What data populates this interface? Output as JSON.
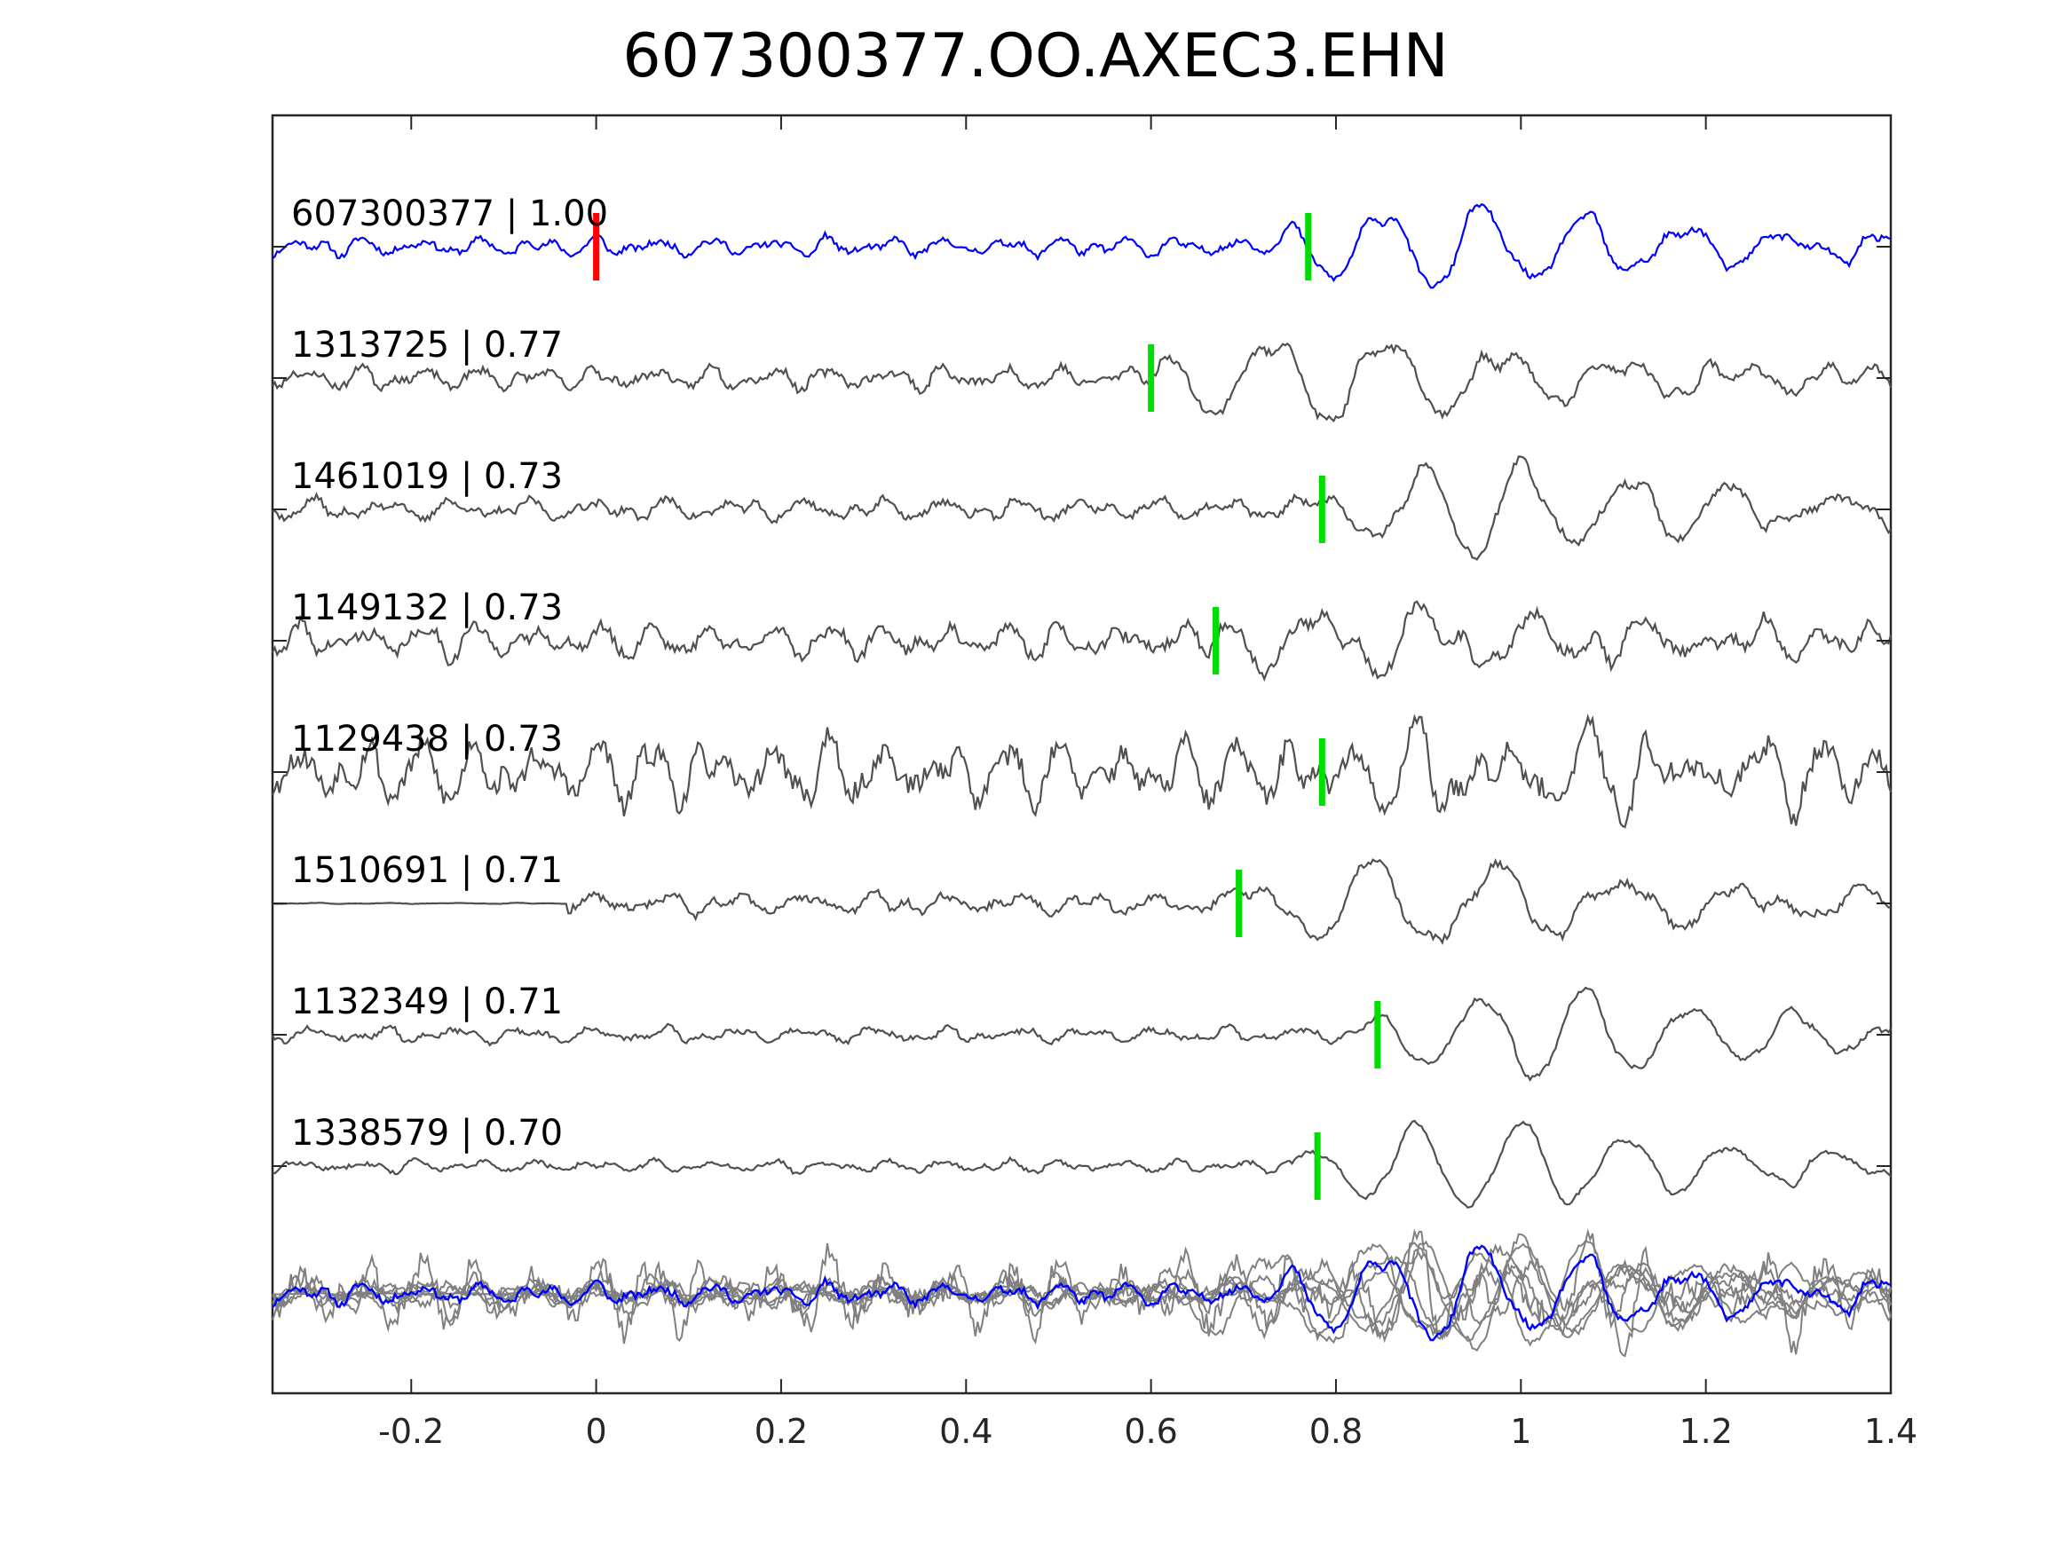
{
  "chart_data": {
    "type": "line",
    "title": "607300377.OO.AXEC3.EHN",
    "xlabel": "",
    "ylabel": "",
    "xlim": [
      -0.35,
      1.4
    ],
    "xticks": [
      -0.2,
      0,
      0.2,
      0.4,
      0.6,
      0.8,
      1,
      1.2,
      1.4
    ],
    "xtick_labels": [
      "-0.2",
      "0",
      "0.2",
      "0.4",
      "0.6",
      "0.8",
      "1",
      "1.2",
      "1.4"
    ],
    "grid": false,
    "colors": {
      "template": "#0000ff",
      "match": "#505050",
      "stack": "#808080",
      "origin_marker": "#ff0000",
      "pick_marker": "#00dd00",
      "axes": "#262626"
    },
    "origin_marker_x": 0.0,
    "series": [
      {
        "id": "607300377",
        "cc": "1.00",
        "label": "607300377 | 1.00",
        "role": "template",
        "pick": 0.77,
        "onset": 0.72,
        "noise": 0.12,
        "amp": 0.72,
        "freq": 9.2,
        "seed": 11
      },
      {
        "id": "1313725",
        "cc": "0.77",
        "label": "1313725 | 0.77",
        "role": "match",
        "pick": 0.6,
        "onset": 0.58,
        "noise": 0.15,
        "amp": 0.75,
        "freq": 8.0,
        "seed": 23
      },
      {
        "id": "1461019",
        "cc": "0.73",
        "label": "1461019 | 0.73",
        "role": "match",
        "pick": 0.785,
        "onset": 0.76,
        "noise": 0.14,
        "amp": 0.8,
        "freq": 9.0,
        "seed": 37
      },
      {
        "id": "1149132",
        "cc": "0.73",
        "label": "1149132 | 0.73",
        "role": "match",
        "pick": 0.67,
        "onset": 0.64,
        "noise": 0.22,
        "amp": 0.5,
        "freq": 8.5,
        "seed": 41
      },
      {
        "id": "1129438",
        "cc": "0.73",
        "label": "1129438 | 0.73",
        "role": "match",
        "pick": 0.785,
        "onset": 0.78,
        "noise": 0.42,
        "amp": 0.5,
        "freq": 11.0,
        "seed": 53
      },
      {
        "id": "1510691",
        "cc": "0.71",
        "label": "1510691 | 0.71",
        "role": "match",
        "pick": 0.695,
        "onset": 0.68,
        "noise": 0.14,
        "amp": 0.75,
        "freq": 7.5,
        "seed": 67,
        "quiet_before": -0.03
      },
      {
        "id": "1132349",
        "cc": "0.71",
        "label": "1132349 | 0.71",
        "role": "match",
        "pick": 0.845,
        "onset": 0.82,
        "noise": 0.1,
        "amp": 0.78,
        "freq": 8.8,
        "seed": 79
      },
      {
        "id": "1338579",
        "cc": "0.70",
        "label": "1338579 | 0.70",
        "role": "match",
        "pick": 0.78,
        "onset": 0.75,
        "noise": 0.08,
        "amp": 0.78,
        "freq": 8.8,
        "seed": 83
      }
    ],
    "stack": {
      "role": "overlay",
      "description_visible": false
    }
  }
}
